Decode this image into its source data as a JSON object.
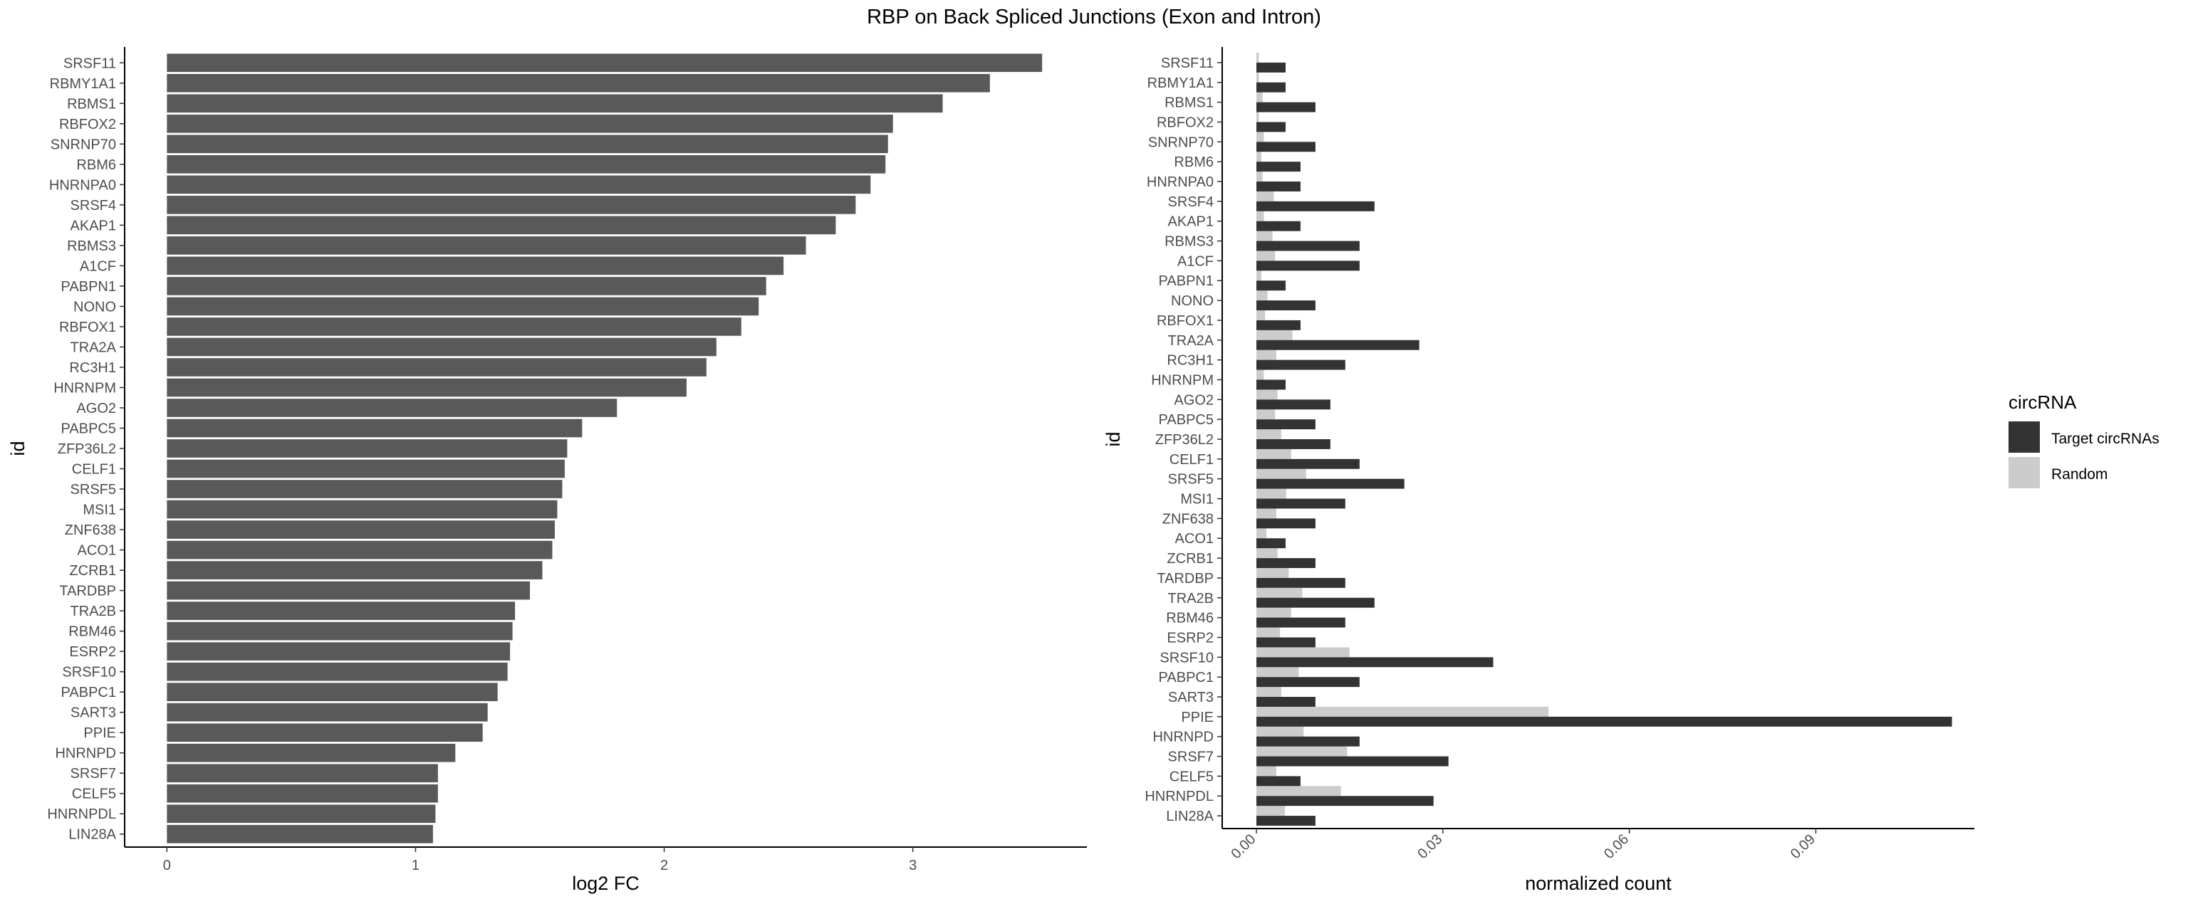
{
  "figure": {
    "title": "RBP on Back Spliced Junctions (Exon and Intron)"
  },
  "legend": {
    "title": "circRNA",
    "placement": "right",
    "items": [
      {
        "label": "Target circRNAs",
        "color": "#333333"
      },
      {
        "label": "Random",
        "color": "#cccccc"
      }
    ]
  },
  "chart_data": [
    {
      "type": "bar",
      "orientation": "horizontal",
      "title": "",
      "xlabel": "log2 FC",
      "ylabel": "id",
      "xlim": [
        -0.17,
        3.7
      ],
      "xticks": [
        0,
        1,
        2,
        3
      ],
      "xtick_labels": [
        "0",
        "1",
        "2",
        "3"
      ],
      "bar_color": "#595959",
      "grid": false,
      "categories": [
        "SRSF11",
        "RBMY1A1",
        "RBMS1",
        "RBFOX2",
        "SNRNP70",
        "RBM6",
        "HNRNPA0",
        "SRSF4",
        "AKAP1",
        "RBMS3",
        "A1CF",
        "PABPN1",
        "NONO",
        "RBFOX1",
        "TRA2A",
        "RC3H1",
        "HNRNPM",
        "AGO2",
        "PABPC5",
        "ZFP36L2",
        "CELF1",
        "SRSF5",
        "MSI1",
        "ZNF638",
        "ACO1",
        "ZCRB1",
        "TARDBP",
        "TRA2B",
        "RBM46",
        "ESRP2",
        "SRSF10",
        "PABPC1",
        "SART3",
        "PPIE",
        "HNRNPD",
        "SRSF7",
        "CELF5",
        "HNRNPDL",
        "LIN28A"
      ],
      "values": [
        3.52,
        3.31,
        3.12,
        2.92,
        2.9,
        2.89,
        2.83,
        2.77,
        2.69,
        2.57,
        2.48,
        2.41,
        2.38,
        2.31,
        2.21,
        2.17,
        2.09,
        1.81,
        1.67,
        1.61,
        1.6,
        1.59,
        1.57,
        1.56,
        1.55,
        1.51,
        1.46,
        1.4,
        1.39,
        1.38,
        1.37,
        1.33,
        1.29,
        1.27,
        1.16,
        1.09,
        1.09,
        1.08,
        1.07
      ]
    },
    {
      "type": "bar",
      "orientation": "horizontal",
      "grouped": true,
      "title": "",
      "xlabel": "normalized count",
      "ylabel": "id",
      "xlim": [
        -0.0055,
        0.1155
      ],
      "xticks": [
        0,
        0.03,
        0.06,
        0.09
      ],
      "xtick_labels": [
        "0.00",
        "0.03",
        "0.06",
        "0.09"
      ],
      "grid": false,
      "categories": [
        "SRSF11",
        "RBMY1A1",
        "RBMS1",
        "RBFOX2",
        "SNRNP70",
        "RBM6",
        "HNRNPA0",
        "SRSF4",
        "AKAP1",
        "RBMS3",
        "A1CF",
        "PABPN1",
        "NONO",
        "RBFOX1",
        "TRA2A",
        "RC3H1",
        "HNRNPM",
        "AGO2",
        "PABPC5",
        "ZFP36L2",
        "CELF1",
        "SRSF5",
        "MSI1",
        "ZNF638",
        "ACO1",
        "ZCRB1",
        "TARDBP",
        "TRA2B",
        "RBM46",
        "ESRP2",
        "SRSF10",
        "PABPC1",
        "SART3",
        "PPIE",
        "HNRNPD",
        "SRSF7",
        "CELF5",
        "HNRNPDL",
        "LIN28A"
      ],
      "series": [
        {
          "name": "Random",
          "color": "#cccccc",
          "values": [
            0.0004,
            0.0004,
            0.001,
            0.0004,
            0.0012,
            0.0008,
            0.001,
            0.0028,
            0.0012,
            0.0026,
            0.003,
            0.0008,
            0.0018,
            0.0014,
            0.0058,
            0.0032,
            0.0012,
            0.0034,
            0.003,
            0.004,
            0.0056,
            0.008,
            0.0048,
            0.0032,
            0.0016,
            0.0034,
            0.0052,
            0.0074,
            0.0056,
            0.0038,
            0.015,
            0.0068,
            0.004,
            0.047,
            0.0076,
            0.0146,
            0.0032,
            0.0136,
            0.0046
          ]
        },
        {
          "name": "Target circRNAs",
          "color": "#333333",
          "values": [
            0.0047,
            0.0047,
            0.0095,
            0.0047,
            0.0095,
            0.0071,
            0.0071,
            0.019,
            0.0071,
            0.0166,
            0.0166,
            0.0047,
            0.0095,
            0.0071,
            0.0262,
            0.0143,
            0.0047,
            0.0119,
            0.0095,
            0.0119,
            0.0166,
            0.0238,
            0.0143,
            0.0095,
            0.0047,
            0.0095,
            0.0143,
            0.019,
            0.0143,
            0.0095,
            0.0381,
            0.0166,
            0.0095,
            0.1119,
            0.0166,
            0.0309,
            0.0071,
            0.0285,
            0.0095
          ]
        }
      ]
    }
  ]
}
